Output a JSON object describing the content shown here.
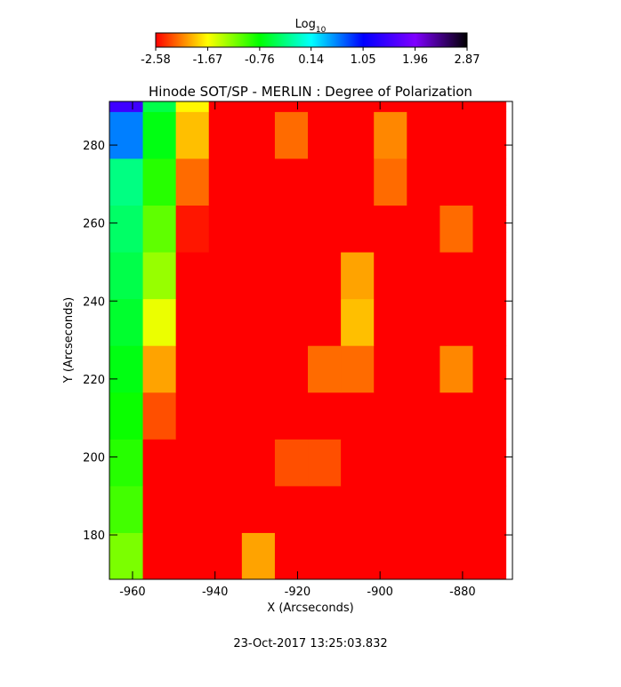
{
  "chart_data": {
    "type": "heatmap",
    "title": "Hinode SOT/SP - MERLIN : Degree of Polarization",
    "xlabel": "X (Arcseconds)",
    "ylabel": "Y (Arcseconds)",
    "footer": "23-Oct-2017 13:25:03.832",
    "colorbar_label": "Log",
    "colorbar_label_sub": "10",
    "clim": [
      -2.58,
      2.87
    ],
    "colorbar_ticks": [
      -2.58,
      -1.67,
      -0.76,
      0.14,
      1.05,
      1.96,
      2.87
    ],
    "colormap": [
      "#ff0000",
      "#ffff00",
      "#00ff00",
      "#00ffff",
      "#0000ff",
      "#7f00ff",
      "#000000"
    ],
    "xlim": [
      -965.6,
      -867.9
    ],
    "ylim": [
      168.6,
      291.2
    ],
    "xticks": [
      -960,
      -940,
      -920,
      -900,
      -880
    ],
    "yticks": [
      180,
      200,
      220,
      240,
      260,
      280
    ],
    "x": [
      -961.5,
      -953.5,
      -945.5,
      -937.5,
      -929.5,
      -921.5,
      -913.5,
      -905.5,
      -897.5,
      -889.5,
      -881.5,
      -873.5
    ],
    "y": [
      174.6,
      186.6,
      198.6,
      210.6,
      222.6,
      234.6,
      246.6,
      258.6,
      270.6,
      282.6,
      294.6
    ],
    "z": [
      [
        -1.2,
        -2.58,
        -2.58,
        -2.58,
        -2.0,
        -2.58,
        -2.58,
        -2.58,
        -2.58,
        -2.58,
        -2.58,
        -2.58
      ],
      [
        -1.0,
        -2.58,
        -2.58,
        -2.58,
        -2.58,
        -2.58,
        -2.58,
        -2.58,
        -2.58,
        -2.58,
        -2.58,
        -2.58
      ],
      [
        -0.9,
        -2.58,
        -2.58,
        -2.58,
        -2.58,
        -2.3,
        -2.3,
        -2.58,
        -2.58,
        -2.58,
        -2.58,
        -2.58
      ],
      [
        -0.8,
        -2.3,
        -2.58,
        -2.58,
        -2.58,
        -2.58,
        -2.58,
        -2.58,
        -2.58,
        -2.58,
        -2.58,
        -2.58
      ],
      [
        -0.7,
        -2.0,
        -2.58,
        -2.58,
        -2.58,
        -2.58,
        -2.2,
        -2.2,
        -2.58,
        -2.58,
        -2.1,
        -2.58
      ],
      [
        -0.6,
        -1.6,
        -2.58,
        -2.58,
        -2.58,
        -2.58,
        -2.58,
        -1.9,
        -2.58,
        -2.58,
        -2.58,
        -2.58
      ],
      [
        -0.5,
        -1.3,
        -2.58,
        -2.58,
        -2.58,
        -2.58,
        -2.58,
        -2.0,
        -2.58,
        -2.58,
        -2.58,
        -2.58
      ],
      [
        -0.4,
        -1.1,
        -2.5,
        -2.58,
        -2.58,
        -2.58,
        -2.58,
        -2.58,
        -2.58,
        -2.58,
        -2.2,
        -2.58
      ],
      [
        -0.3,
        -0.9,
        -2.2,
        -2.58,
        -2.58,
        -2.58,
        -2.58,
        -2.58,
        -2.2,
        -2.58,
        -2.58,
        -2.58
      ],
      [
        0.6,
        -0.7,
        -1.9,
        -2.58,
        -2.58,
        -2.2,
        -2.58,
        -2.58,
        -2.1,
        -2.58,
        -2.58,
        -2.58
      ],
      [
        1.5,
        -0.5,
        -1.7,
        -2.58,
        -2.58,
        -2.58,
        -2.58,
        -2.58,
        -2.58,
        -2.58,
        -2.58,
        -2.58
      ]
    ]
  }
}
